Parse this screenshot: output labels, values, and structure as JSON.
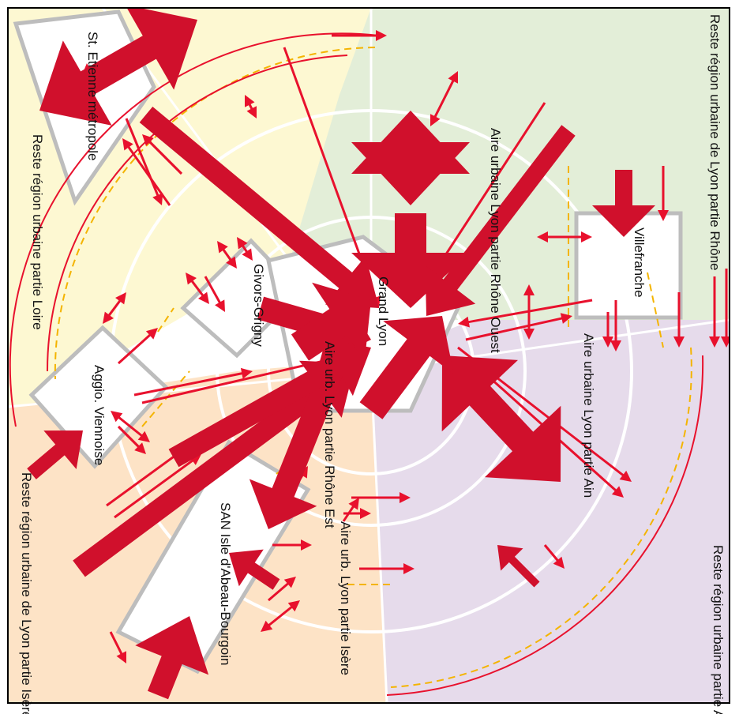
{
  "colors": {
    "rhone": "#e3eed8",
    "loire": "#fdf8d2",
    "isere": "#fde3c6",
    "ain": "#e6dbeb",
    "city_box": "#ffffff",
    "box_border": "#bdbdbd",
    "ring": "#ffffff",
    "flow_major": "#d0102c",
    "flow_minor": "#e8112d",
    "flow_dashed": "#f4b400",
    "frame": "#000000"
  },
  "zones": {
    "rhone_rest": "Reste région urbaine de Lyon partie Rhône",
    "loire_rest": "Reste région urbaine partie Loire",
    "isere_rest": "Reste région urbaine de Lyon partie Isère",
    "ain_rest": "Reste région urbaine partie Ain"
  },
  "areas": {
    "rhone_ouest": "Aire urbaine Lyon partie Rhône Ouest",
    "rhone_est": "Aire urb. Lyon partie Rhône Est",
    "ain": "Aire urbaine Lyon partie Ain",
    "isere": "Aire urb. Lyon partie Isère"
  },
  "nodes": {
    "grand_lyon": "Grand Lyon",
    "villefranche": "Villefranche",
    "st_etienne": "St. Etienne métropole",
    "givors": "Givors-Grigny",
    "vienne": "Aggio. Viennoise",
    "isle_abeau": "SAN Isle d'Abeau-Bourgoin"
  },
  "legend": {
    "flow_types": [
      "major-flow",
      "minor-flow",
      "dashed-flow"
    ]
  }
}
